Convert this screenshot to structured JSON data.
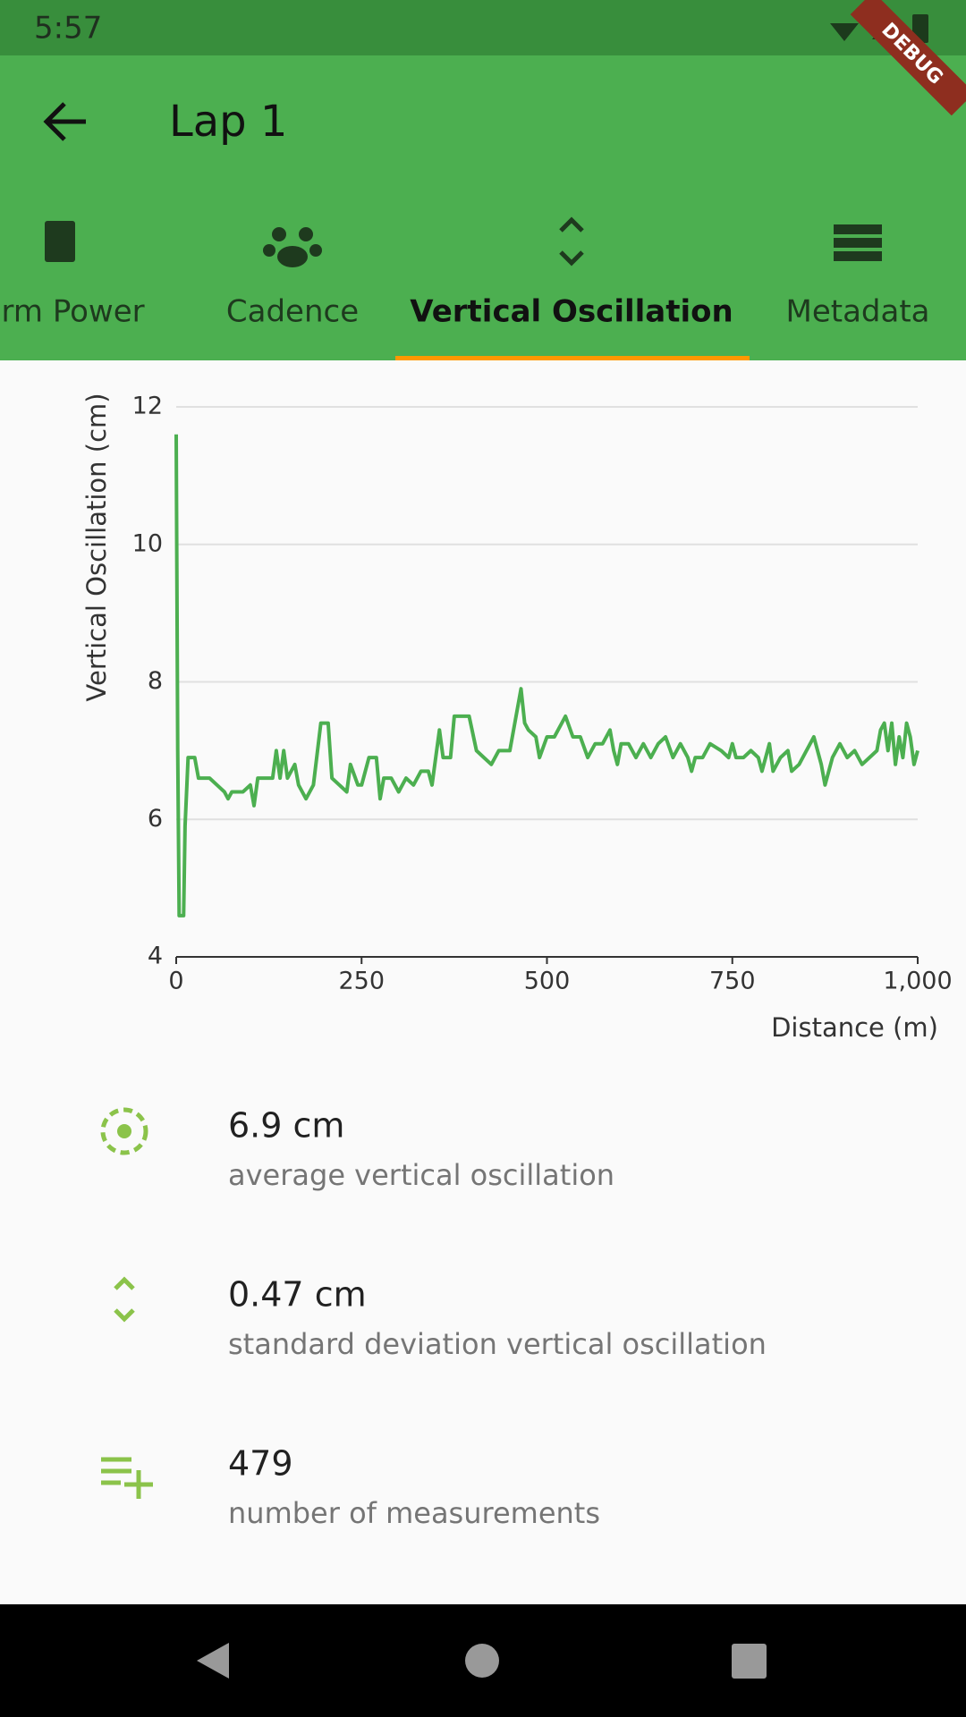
{
  "status_bar": {
    "time": "5:57"
  },
  "debug_banner": "DEBUG",
  "app_bar": {
    "title": "Lap 1"
  },
  "tabs": [
    "Form Power",
    "Cadence",
    "Vertical Oscillation",
    "Metadata"
  ],
  "selected_tab": 2,
  "chart_data": {
    "type": "line",
    "y_label": "Vertical Oscillation (cm)",
    "x_label": "Distance (m)",
    "color": "#4caf50",
    "x": [
      0,
      2,
      4,
      10,
      12,
      16,
      25,
      30,
      45,
      55,
      65,
      70,
      75,
      90,
      100,
      105,
      110,
      130,
      135,
      140,
      145,
      150,
      160,
      165,
      175,
      185,
      195,
      205,
      210,
      220,
      230,
      235,
      245,
      250,
      260,
      270,
      275,
      280,
      290,
      300,
      310,
      320,
      330,
      340,
      345,
      355,
      360,
      370,
      375,
      385,
      395,
      405,
      415,
      425,
      435,
      450,
      465,
      470,
      475,
      485,
      490,
      500,
      510,
      520,
      525,
      535,
      545,
      555,
      565,
      575,
      585,
      590,
      595,
      600,
      610,
      620,
      630,
      640,
      650,
      660,
      670,
      680,
      690,
      695,
      700,
      710,
      720,
      735,
      745,
      750,
      755,
      765,
      775,
      785,
      790,
      800,
      805,
      815,
      825,
      830,
      840,
      850,
      860,
      870,
      875,
      885,
      895,
      905,
      915,
      925,
      935,
      945,
      950,
      955,
      960,
      965,
      970,
      975,
      980,
      985,
      990,
      995,
      1000
    ],
    "values": [
      11.6,
      7,
      4.6,
      4.6,
      5.9,
      6.9,
      6.9,
      6.6,
      6.6,
      6.5,
      6.4,
      6.3,
      6.4,
      6.4,
      6.5,
      6.2,
      6.6,
      6.6,
      7.0,
      6.6,
      7.0,
      6.6,
      6.8,
      6.5,
      6.3,
      6.5,
      7.4,
      7.4,
      6.6,
      6.5,
      6.4,
      6.8,
      6.5,
      6.5,
      6.9,
      6.9,
      6.3,
      6.6,
      6.6,
      6.4,
      6.6,
      6.5,
      6.7,
      6.7,
      6.5,
      7.3,
      6.9,
      6.9,
      7.5,
      7.5,
      7.5,
      7.0,
      6.9,
      6.8,
      7.0,
      7.0,
      7.9,
      7.4,
      7.3,
      7.2,
      6.9,
      7.2,
      7.2,
      7.4,
      7.5,
      7.2,
      7.2,
      6.9,
      7.1,
      7.1,
      7.3,
      7.0,
      6.8,
      7.1,
      7.1,
      6.9,
      7.1,
      6.9,
      7.1,
      7.2,
      6.9,
      7.1,
      6.9,
      6.7,
      6.9,
      6.9,
      7.1,
      7.0,
      6.9,
      7.1,
      6.9,
      6.9,
      7.0,
      6.9,
      6.7,
      7.1,
      6.7,
      6.9,
      7.0,
      6.7,
      6.8,
      7.0,
      7.2,
      6.8,
      6.5,
      6.9,
      7.1,
      6.9,
      7.0,
      6.8,
      6.9,
      7.0,
      7.3,
      7.4,
      7.0,
      7.4,
      6.8,
      7.2,
      6.9,
      7.4,
      7.2,
      6.8,
      7.0
    ],
    "xlim": [
      0,
      1000
    ],
    "xticks": [
      0,
      250,
      500,
      750,
      {
        "value": 1000,
        "label": "1,000"
      }
    ],
    "ylim": [
      4,
      12
    ],
    "yticks": [
      4,
      6,
      8,
      10,
      12
    ],
    "grid": true
  },
  "stats": [
    {
      "value": "6.9 cm",
      "label": "average vertical oscillation"
    },
    {
      "value": "0.47 cm",
      "label": "standard deviation vertical oscillation"
    },
    {
      "value": "479",
      "label": "number of measurements"
    }
  ]
}
